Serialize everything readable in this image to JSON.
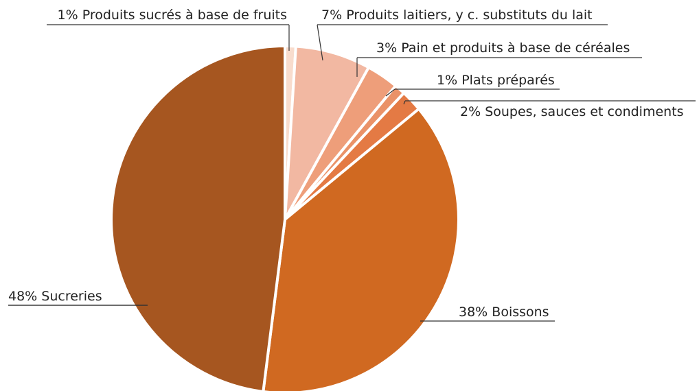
{
  "chart_data": {
    "type": "pie",
    "categories": [
      "Produits sucrés à base de fruits",
      "Produits laitiers, y c. substituts du lait",
      "Pain et produits à base de céréales",
      "Plats préparés",
      "Soupes, sauces et condiments",
      "Boissons",
      "Sucreries"
    ],
    "values": [
      1,
      7,
      3,
      1,
      2,
      38,
      48
    ],
    "value_labels": [
      "1%",
      "7%",
      "3%",
      "1%",
      "2%",
      "38%",
      "48%"
    ],
    "colors": [
      "#f8dccd",
      "#f2b8a2",
      "#ee9e7a",
      "#ea9268",
      "#e47a44",
      "#d06921",
      "#a65620"
    ]
  }
}
